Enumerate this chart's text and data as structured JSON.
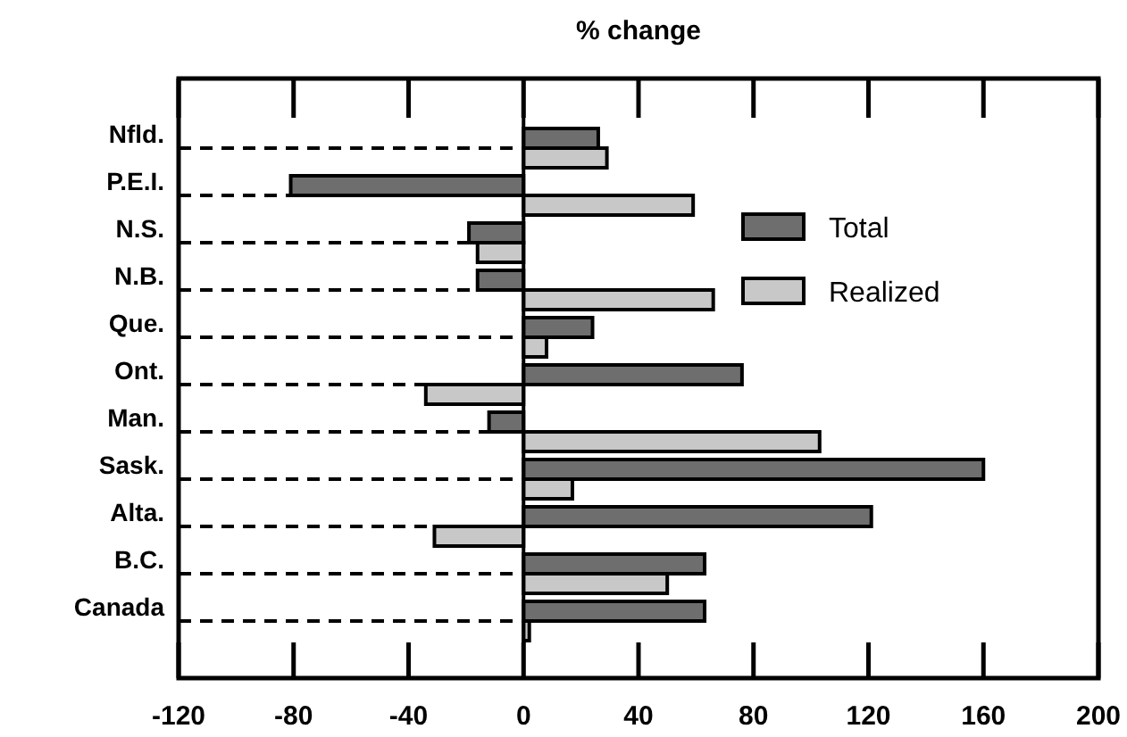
{
  "chart_data": {
    "type": "bar",
    "orientation": "horizontal",
    "title": "% change",
    "categories": [
      "Nfld.",
      "P.E.I.",
      "N.S.",
      "N.B.",
      "Que.",
      "Ont.",
      "Man.",
      "Sask.",
      "Alta.",
      "B.C.",
      "Canada"
    ],
    "series": [
      {
        "name": "Total",
        "color": "#6e6e6e",
        "values": [
          26,
          -81,
          -19,
          -16,
          24,
          76,
          -12,
          160,
          121,
          63,
          63
        ]
      },
      {
        "name": "Realized",
        "color": "#c8c8c8",
        "values": [
          29,
          59,
          -16,
          66,
          8,
          -34,
          103,
          17,
          -31,
          50,
          2
        ]
      }
    ],
    "xlim": [
      -120,
      200
    ],
    "xticks": [
      -120,
      -80,
      -40,
      0,
      40,
      80,
      120,
      160,
      200
    ],
    "legend": "right"
  }
}
